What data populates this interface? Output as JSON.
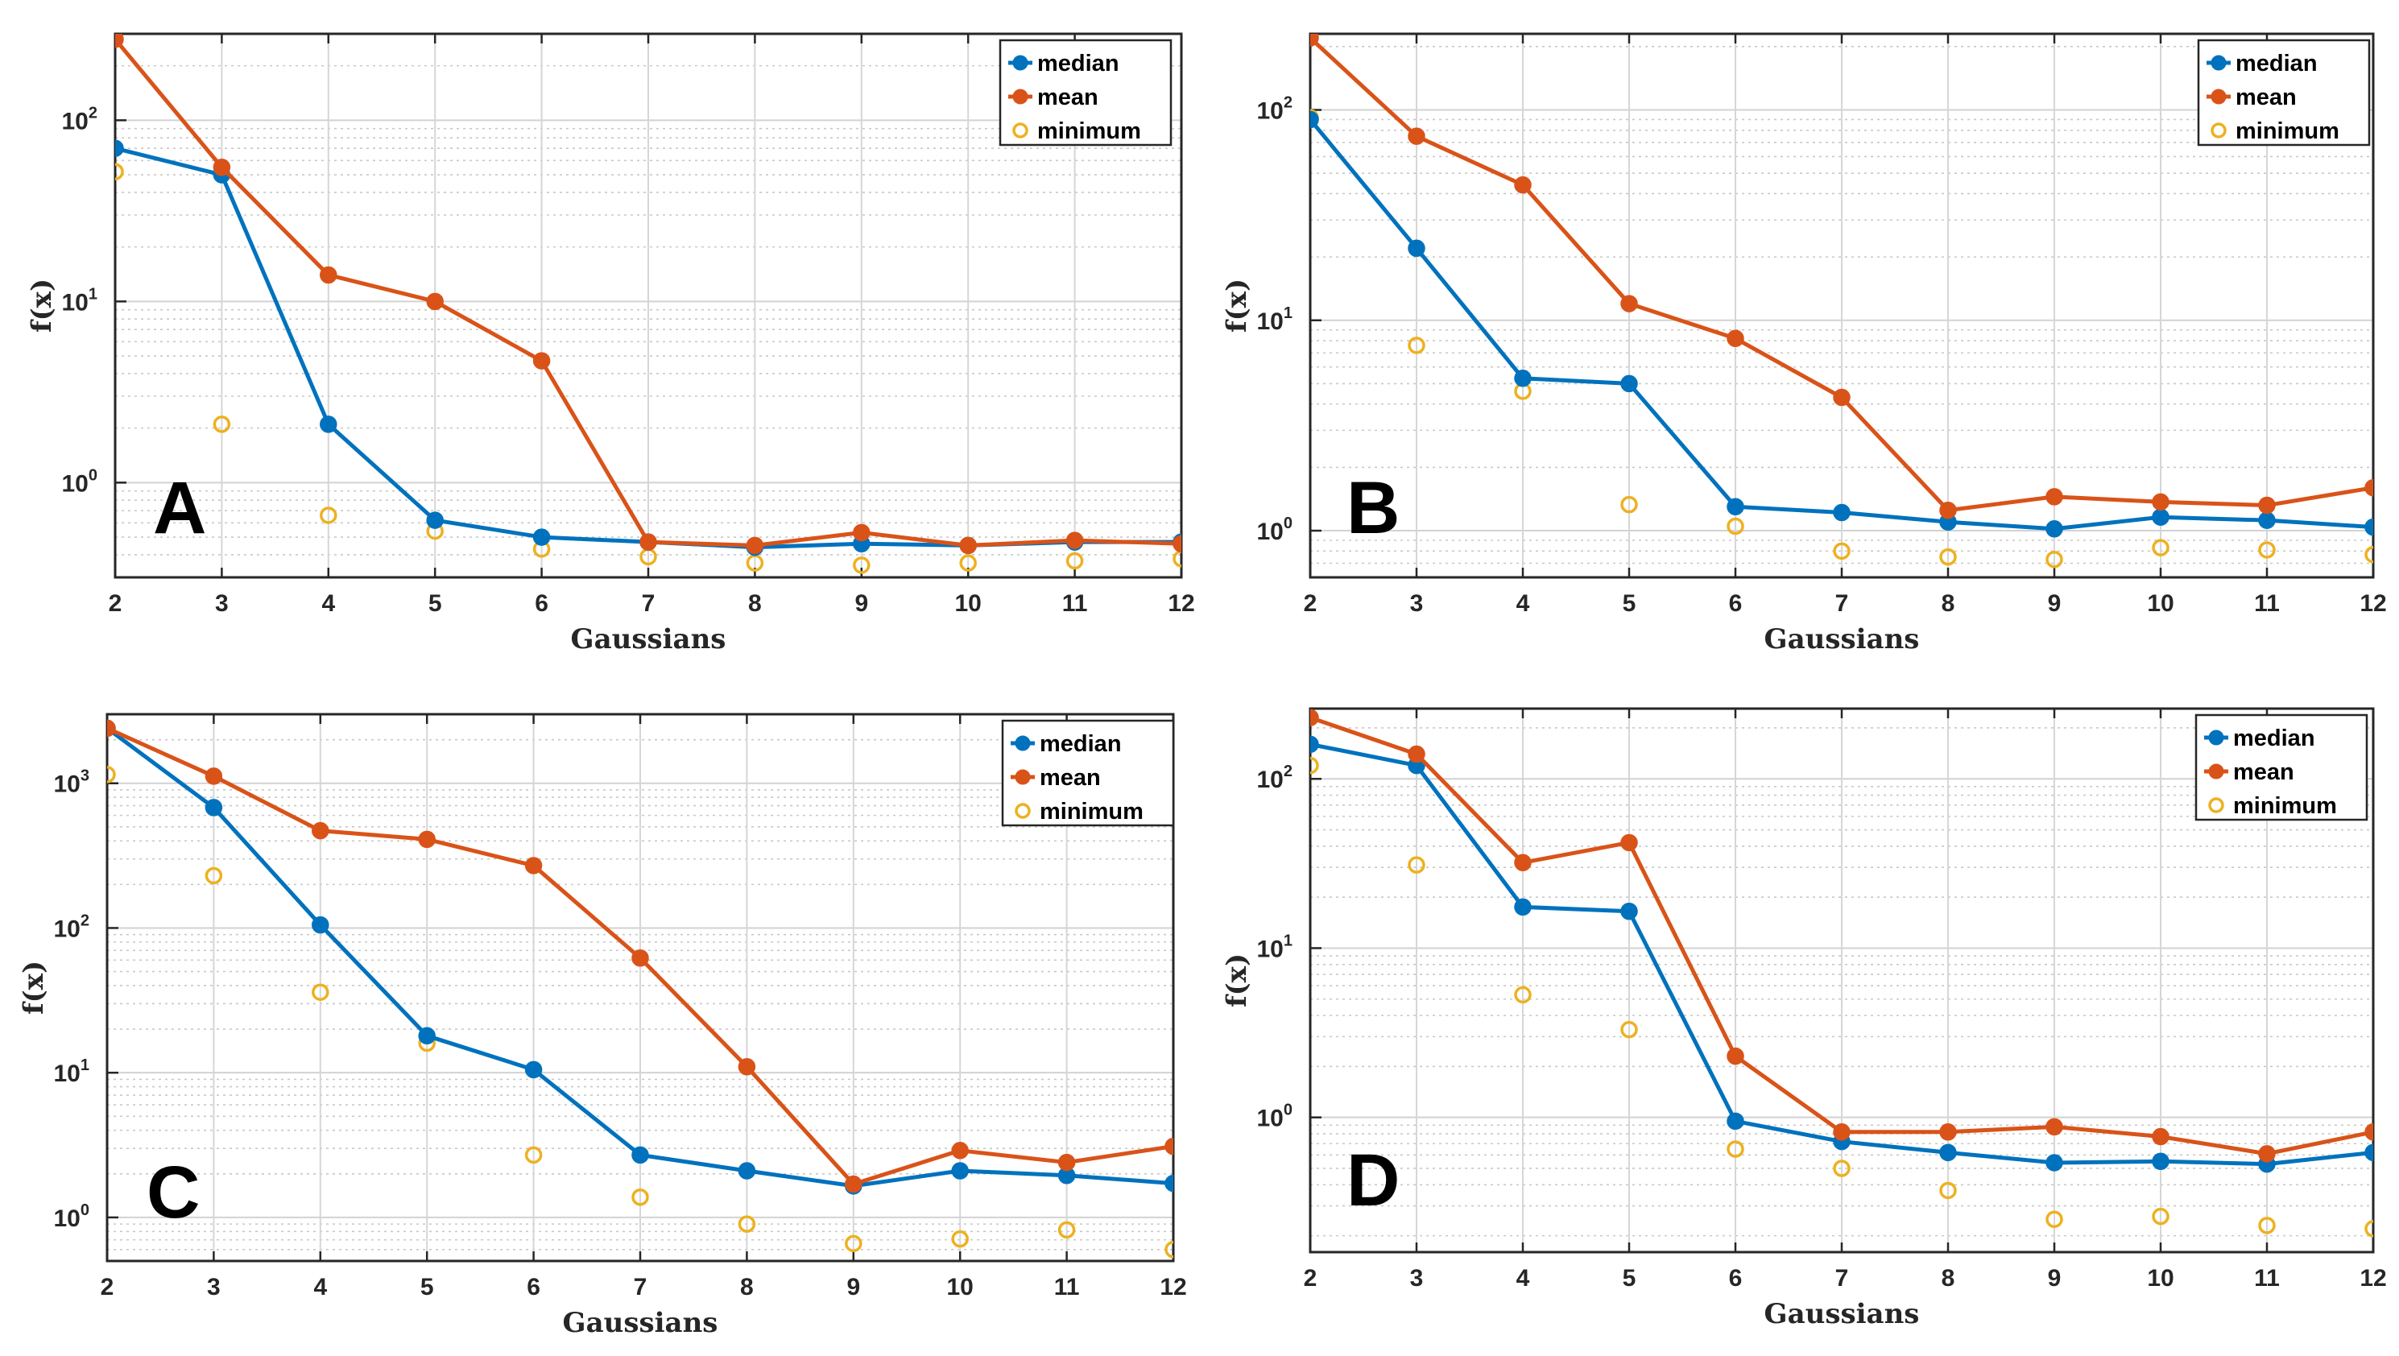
{
  "chart_data": [
    {
      "type": "line",
      "panel": "A",
      "xlabel": "Gaussians",
      "ylabel": "f(x)",
      "x": [
        2,
        3,
        4,
        5,
        6,
        7,
        8,
        9,
        10,
        11,
        12
      ],
      "xlim": [
        2,
        12
      ],
      "ylim": [
        0.3,
        300
      ],
      "yscale": "log",
      "yticks": [
        {
          "value": 1,
          "base": "10",
          "exp": "0"
        },
        {
          "value": 10,
          "base": "10",
          "exp": "1"
        },
        {
          "value": 100,
          "base": "10",
          "exp": "2"
        }
      ],
      "grid": true,
      "legend_position": "top-right",
      "series": [
        {
          "name": "median",
          "color": "#0072BD",
          "style": "line-marker",
          "values": [
            70,
            50,
            2.1,
            0.62,
            0.5,
            0.47,
            0.44,
            0.46,
            0.45,
            0.47,
            0.47
          ]
        },
        {
          "name": "mean",
          "color": "#D95319",
          "style": "line-marker",
          "values": [
            280,
            55,
            14,
            10,
            4.7,
            0.47,
            0.45,
            0.53,
            0.45,
            0.48,
            0.46
          ]
        },
        {
          "name": "minimum",
          "color": "#EDB120",
          "style": "marker",
          "values": [
            52,
            2.1,
            0.66,
            0.54,
            0.43,
            0.39,
            0.36,
            0.35,
            0.36,
            0.37,
            0.38
          ]
        }
      ]
    },
    {
      "type": "line",
      "panel": "B",
      "xlabel": "Gaussians",
      "ylabel": "f(x)",
      "x": [
        2,
        3,
        4,
        5,
        6,
        7,
        8,
        9,
        10,
        11,
        12
      ],
      "xlim": [
        2,
        12
      ],
      "ylim": [
        0.6,
        230
      ],
      "yscale": "log",
      "yticks": [
        {
          "value": 1,
          "base": "10",
          "exp": "0"
        },
        {
          "value": 10,
          "base": "10",
          "exp": "1"
        },
        {
          "value": 100,
          "base": "10",
          "exp": "2"
        }
      ],
      "grid": true,
      "legend_position": "top-right",
      "series": [
        {
          "name": "median",
          "color": "#0072BD",
          "style": "line-marker",
          "values": [
            90,
            22,
            5.3,
            5.0,
            1.3,
            1.22,
            1.1,
            1.02,
            1.16,
            1.12,
            1.04
          ]
        },
        {
          "name": "mean",
          "color": "#D95319",
          "style": "line-marker",
          "values": [
            220,
            75,
            44,
            12,
            8.2,
            4.3,
            1.25,
            1.45,
            1.37,
            1.32,
            1.6
          ]
        },
        {
          "name": "minimum",
          "color": "#EDB120",
          "style": "marker",
          "values": [
            92,
            7.6,
            4.6,
            1.33,
            1.05,
            0.8,
            0.75,
            0.73,
            0.83,
            0.81,
            0.77
          ]
        }
      ]
    },
    {
      "type": "line",
      "panel": "C",
      "xlabel": "Gaussians",
      "ylabel": "f(x)",
      "x": [
        2,
        3,
        4,
        5,
        6,
        7,
        8,
        9,
        10,
        11,
        12
      ],
      "xlim": [
        2,
        12
      ],
      "ylim": [
        0.5,
        3000
      ],
      "yscale": "log",
      "yticks": [
        {
          "value": 1,
          "base": "10",
          "exp": "0"
        },
        {
          "value": 10,
          "base": "10",
          "exp": "1"
        },
        {
          "value": 100,
          "base": "10",
          "exp": "2"
        },
        {
          "value": 1000,
          "base": "10",
          "exp": "3"
        }
      ],
      "grid": true,
      "legend_position": "top-right",
      "series": [
        {
          "name": "median",
          "color": "#0072BD",
          "style": "line-marker",
          "values": [
            2400,
            680,
            105,
            18,
            10.5,
            2.7,
            2.1,
            1.65,
            2.1,
            1.95,
            1.72
          ]
        },
        {
          "name": "mean",
          "color": "#D95319",
          "style": "line-marker",
          "values": [
            2400,
            1120,
            470,
            410,
            270,
            62,
            11,
            1.7,
            2.9,
            2.4,
            3.1
          ]
        },
        {
          "name": "minimum",
          "color": "#EDB120",
          "style": "marker",
          "values": [
            1150,
            230,
            36,
            16,
            2.7,
            1.38,
            0.9,
            0.66,
            0.71,
            0.82,
            0.6
          ]
        }
      ]
    },
    {
      "type": "line",
      "panel": "D",
      "xlabel": "Gaussians",
      "ylabel": "f(x)",
      "x": [
        2,
        3,
        4,
        5,
        6,
        7,
        8,
        9,
        10,
        11,
        12
      ],
      "xlim": [
        2,
        12
      ],
      "ylim": [
        0.16,
        260
      ],
      "yscale": "log",
      "yticks": [
        {
          "value": 1,
          "base": "10",
          "exp": "0"
        },
        {
          "value": 10,
          "base": "10",
          "exp": "1"
        },
        {
          "value": 100,
          "base": "10",
          "exp": "2"
        }
      ],
      "grid": true,
      "legend_position": "top-right",
      "series": [
        {
          "name": "median",
          "color": "#0072BD",
          "style": "line-marker",
          "values": [
            160,
            120,
            17.5,
            16.5,
            0.95,
            0.72,
            0.62,
            0.54,
            0.55,
            0.53,
            0.62
          ]
        },
        {
          "name": "mean",
          "color": "#D95319",
          "style": "line-marker",
          "values": [
            230,
            140,
            32,
            42,
            2.3,
            0.82,
            0.82,
            0.88,
            0.77,
            0.61,
            0.82
          ]
        },
        {
          "name": "minimum",
          "color": "#EDB120",
          "style": "marker",
          "values": [
            120,
            31,
            5.3,
            3.3,
            0.65,
            0.5,
            0.37,
            0.25,
            0.26,
            0.23,
            0.22
          ]
        }
      ]
    }
  ]
}
